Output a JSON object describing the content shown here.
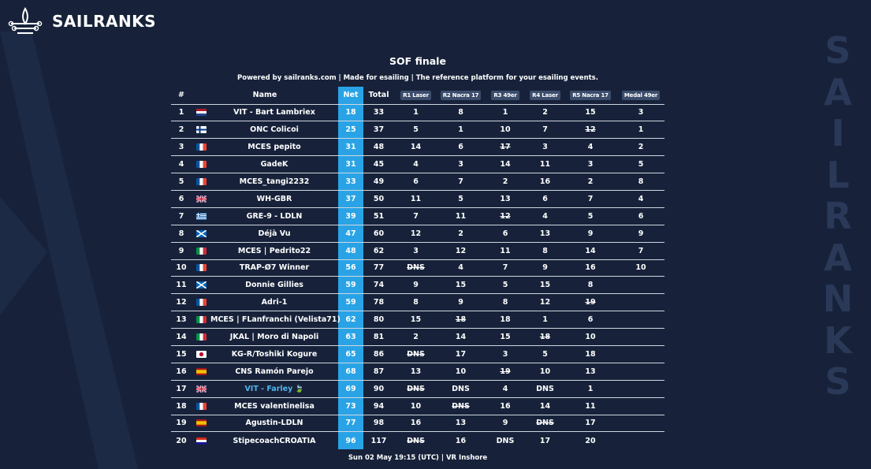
{
  "brand": {
    "logo_text": "SAILRANKS",
    "side_letters": [
      "S",
      "A",
      "I",
      "L",
      "R",
      "A",
      "N",
      "K",
      "S"
    ]
  },
  "title": "SOF finale",
  "subtitle": "Powered by sailranks.com | Made for esailing | The reference platform for your esailing events.",
  "footer": "Sun 02 May 19:15 (UTC) | VR Inshore",
  "columns": {
    "pos": "#",
    "name": "Name",
    "net": "Net",
    "total": "Total",
    "races": [
      "R1 Laser",
      "R2 Nacra 17",
      "R3 49er",
      "R4 Laser",
      "R5 Nacra 17",
      "Medal 49er"
    ]
  },
  "colors": {
    "background": "#17223a",
    "accent": "#29a3e6",
    "badge": "#3c4d6c"
  },
  "rows": [
    {
      "pos": "1",
      "flag": "NL",
      "name": "VIT - Bart Lambriex",
      "net": "18",
      "total": "33",
      "races": [
        "1",
        "8",
        "1",
        "2",
        "15",
        "3"
      ],
      "dropped": []
    },
    {
      "pos": "2",
      "flag": "FI",
      "name": "ONC Colicoi",
      "net": "25",
      "total": "37",
      "races": [
        "5",
        "1",
        "10",
        "7",
        "12",
        "1"
      ],
      "dropped": [
        4
      ]
    },
    {
      "pos": "3",
      "flag": "FR",
      "name": "MCES pepito",
      "net": "31",
      "total": "48",
      "races": [
        "14",
        "6",
        "17",
        "3",
        "4",
        "2"
      ],
      "dropped": [
        2
      ]
    },
    {
      "pos": "4",
      "flag": "FR",
      "name": "GadeK",
      "net": "31",
      "total": "45",
      "races": [
        "4",
        "3",
        "14",
        "11",
        "3",
        "5"
      ],
      "dropped": []
    },
    {
      "pos": "5",
      "flag": "FR",
      "name": "MCES_tangi2232",
      "net": "33",
      "total": "49",
      "races": [
        "6",
        "7",
        "2",
        "16",
        "2",
        "8"
      ],
      "dropped": []
    },
    {
      "pos": "6",
      "flag": "GB",
      "name": "WH-GBR",
      "net": "37",
      "total": "50",
      "races": [
        "11",
        "5",
        "13",
        "6",
        "7",
        "4"
      ],
      "dropped": []
    },
    {
      "pos": "7",
      "flag": "GR",
      "name": "GRE-9 - LDLN",
      "net": "39",
      "total": "51",
      "races": [
        "7",
        "11",
        "12",
        "4",
        "5",
        "6"
      ],
      "dropped": [
        2
      ]
    },
    {
      "pos": "8",
      "flag": "SC",
      "name": "Déjà Vu",
      "net": "47",
      "total": "60",
      "races": [
        "12",
        "2",
        "6",
        "13",
        "9",
        "9"
      ],
      "dropped": []
    },
    {
      "pos": "9",
      "flag": "IT",
      "name": "MCES | Pedrito22",
      "net": "48",
      "total": "62",
      "races": [
        "3",
        "12",
        "11",
        "8",
        "14",
        "7"
      ],
      "dropped": []
    },
    {
      "pos": "10",
      "flag": "FR",
      "name": "TRAP-Ø7 Winner",
      "net": "56",
      "total": "77",
      "races": [
        "DNS",
        "4",
        "7",
        "9",
        "16",
        "10"
      ],
      "dropped": [
        0
      ]
    },
    {
      "pos": "11",
      "flag": "SC",
      "name": "Donnie Gillies",
      "net": "59",
      "total": "74",
      "races": [
        "9",
        "15",
        "5",
        "15",
        "8",
        ""
      ],
      "dropped": []
    },
    {
      "pos": "12",
      "flag": "FR",
      "name": "Adri-1",
      "net": "59",
      "total": "78",
      "races": [
        "8",
        "9",
        "8",
        "12",
        "19",
        ""
      ],
      "dropped": [
        4
      ]
    },
    {
      "pos": "13",
      "flag": "IT",
      "name": "MCES | FLanfranchi (Velista71)",
      "net": "62",
      "total": "80",
      "races": [
        "15",
        "18",
        "18",
        "1",
        "6",
        ""
      ],
      "dropped": [
        1
      ]
    },
    {
      "pos": "14",
      "flag": "IT",
      "name": "JKAL | Moro di Napoli",
      "net": "63",
      "total": "81",
      "races": [
        "2",
        "14",
        "15",
        "18",
        "10",
        ""
      ],
      "dropped": [
        3
      ]
    },
    {
      "pos": "15",
      "flag": "JP",
      "name": "KG-R/Toshiki Kogure",
      "net": "65",
      "total": "86",
      "races": [
        "DNS",
        "17",
        "3",
        "5",
        "18",
        ""
      ],
      "dropped": [
        0
      ]
    },
    {
      "pos": "16",
      "flag": "ES",
      "name": "CNS Ramón Parejo",
      "net": "68",
      "total": "87",
      "races": [
        "13",
        "10",
        "19",
        "10",
        "13",
        ""
      ],
      "dropped": [
        2
      ]
    },
    {
      "pos": "17",
      "flag": "GB",
      "name": "VIT - Farley",
      "net": "69",
      "total": "90",
      "races": [
        "DNS",
        "DNS",
        "4",
        "DNS",
        "1",
        ""
      ],
      "dropped": [
        0
      ],
      "highlight": true
    },
    {
      "pos": "18",
      "flag": "FR",
      "name": "MCES valentinelisa",
      "net": "73",
      "total": "94",
      "races": [
        "10",
        "DNS",
        "16",
        "14",
        "11",
        ""
      ],
      "dropped": [
        1
      ]
    },
    {
      "pos": "19",
      "flag": "ES",
      "name": "Agustin-LDLN",
      "net": "77",
      "total": "98",
      "races": [
        "16",
        "13",
        "9",
        "DNS",
        "17",
        ""
      ],
      "dropped": [
        3
      ]
    },
    {
      "pos": "20",
      "flag": "HR",
      "name": "StipecoachCROATIA",
      "net": "96",
      "total": "117",
      "races": [
        "DNS",
        "16",
        "DNS",
        "17",
        "20",
        ""
      ],
      "dropped": [
        0
      ]
    }
  ]
}
